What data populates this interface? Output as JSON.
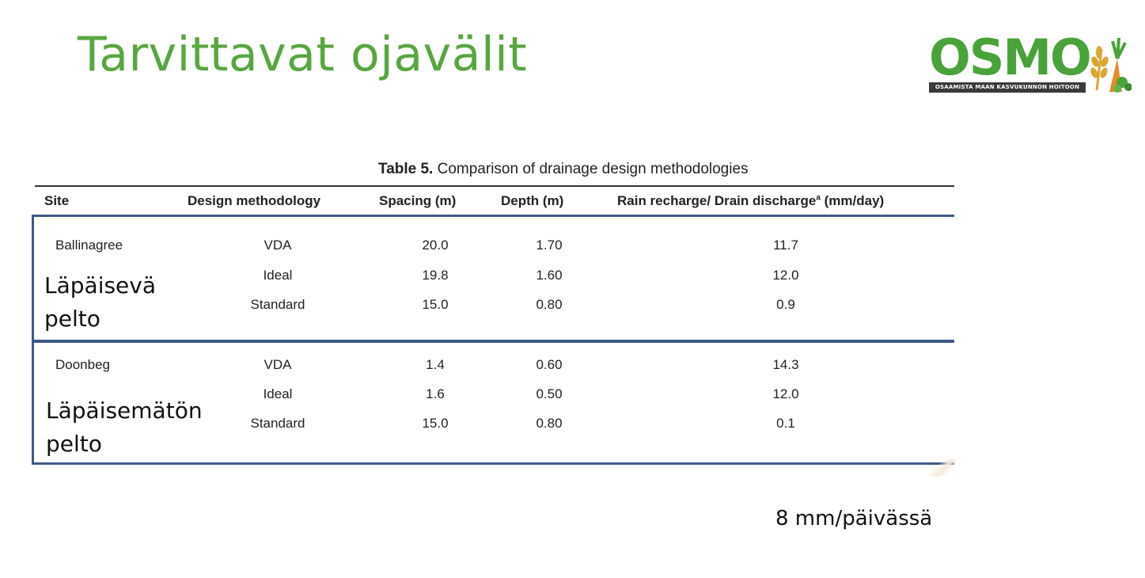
{
  "slide": {
    "title": "Tarvittavat ojavälit",
    "footnote": "8 mm/päivässä"
  },
  "logo": {
    "word": "OSMO",
    "tagline": "OSAAMISTA MAAN KASVUKUNNON HOITOON",
    "colors": {
      "green": "#4aa23a",
      "dark": "#3a3a3a",
      "orange": "#e8892a",
      "yellow": "#d9a632"
    }
  },
  "table": {
    "caption_bold": "Table 5.",
    "caption_rest": " Comparison of drainage design methodologies",
    "headers": {
      "site": "Site",
      "method": "Design methodology",
      "spacing": "Spacing (m)",
      "depth": "Depth (m)",
      "rain": "Rain recharge/ Drain discharge",
      "rain_sup": "a",
      "rain_unit": " (mm/day)"
    },
    "groups": [
      {
        "site": "Ballinagree",
        "overlay_line1": "Läpäisevä",
        "overlay_line2": "pelto",
        "rows": [
          {
            "method": "VDA",
            "spacing": "20.0",
            "depth": "1.70",
            "rain": "11.7"
          },
          {
            "method": "Ideal",
            "spacing": "19.8",
            "depth": "1.60",
            "rain": "12.0"
          },
          {
            "method": "Standard",
            "spacing": "15.0",
            "depth": "0.80",
            "rain": "0.9"
          }
        ]
      },
      {
        "site": "Doonbeg",
        "overlay_line1": "Läpäisemätön",
        "overlay_line2": "pelto",
        "rows": [
          {
            "method": "VDA",
            "spacing": "1.4",
            "depth": "0.60",
            "rain": "14.3"
          },
          {
            "method": "Ideal",
            "spacing": "1.6",
            "depth": "0.50",
            "rain": "12.0"
          },
          {
            "method": "Standard",
            "spacing": "15.0",
            "depth": "0.80",
            "rain": "0.1"
          }
        ]
      }
    ],
    "border_color": "#3f5a87"
  }
}
